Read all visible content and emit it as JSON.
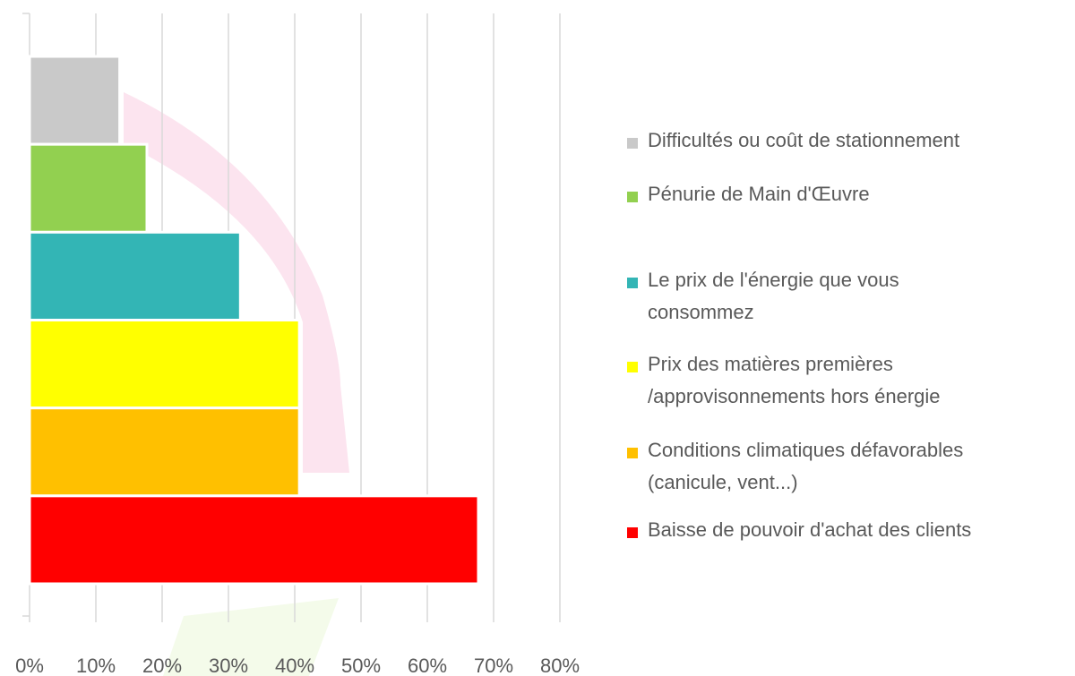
{
  "chart_data": {
    "type": "barh",
    "categories": [
      "Difficultés ou coût de stationnement",
      "Pénurie de Main d'Œuvre",
      "Le prix de l'énergie que vous\nconsommez",
      "Prix des matières premières\n/approvisonnements hors énergie",
      "Conditions climatiques défavorables\n(canicule, vent...)",
      "Baisse de pouvoir d'achat des clients"
    ],
    "values": [
      13.6,
      17.7,
      31.8,
      40.7,
      40.7,
      67.7
    ],
    "colors": [
      "#c9c9c9",
      "#92d050",
      "#33b5b5",
      "#ffff00",
      "#ffc000",
      "#ff0000"
    ],
    "xlim": [
      0,
      80
    ],
    "xticks": [
      {
        "value": 0,
        "label": "0%"
      },
      {
        "value": 10,
        "label": "10%"
      },
      {
        "value": 20,
        "label": "20%"
      },
      {
        "value": 30,
        "label": "30%"
      },
      {
        "value": 40,
        "label": "40%"
      },
      {
        "value": 50,
        "label": "50%"
      },
      {
        "value": 60,
        "label": "60%"
      },
      {
        "value": 70,
        "label": "70%"
      },
      {
        "value": 80,
        "label": "80%"
      }
    ],
    "grid": true,
    "legend": "right"
  }
}
